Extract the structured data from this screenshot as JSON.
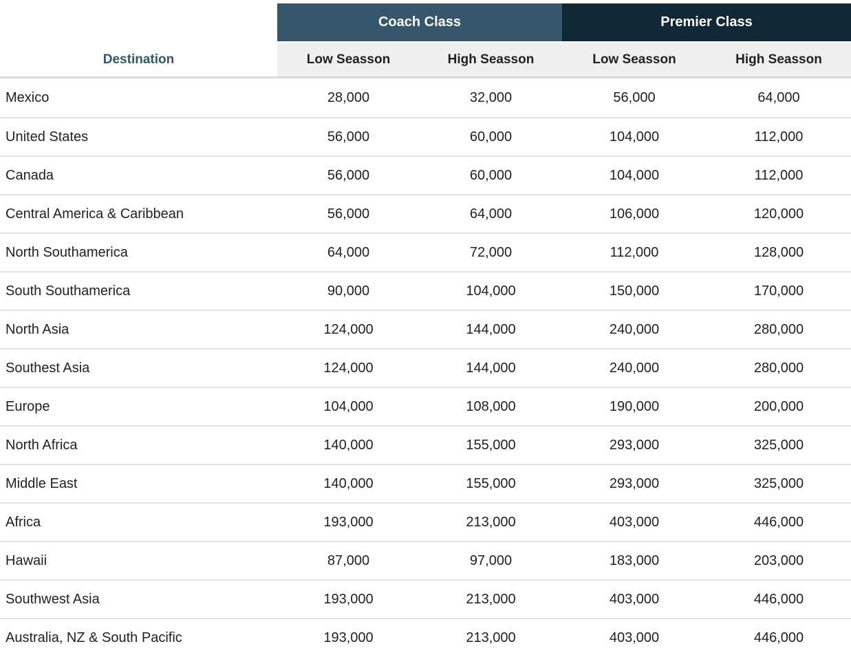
{
  "colors": {
    "coach_header_bg": "#35566B",
    "premier_header_bg": "#112936",
    "season_header_bg": "#efefef",
    "destination_header_text": "#2E5968",
    "body_text": "#212121",
    "row_divider": "#e2e2e2",
    "header_text": "#ffffff"
  },
  "table": {
    "destination_header": "Destination",
    "class_groups": [
      {
        "label": "Coach Class"
      },
      {
        "label": "Premier Class"
      }
    ],
    "season_headers": [
      "Low Seasson",
      "High Seasson",
      "Low Seasson",
      "High Seasson"
    ],
    "rows": [
      {
        "destination": "Mexico",
        "values": [
          "28,000",
          "32,000",
          "56,000",
          "64,000"
        ]
      },
      {
        "destination": "United States",
        "values": [
          "56,000",
          "60,000",
          "104,000",
          "112,000"
        ]
      },
      {
        "destination": "Canada",
        "values": [
          "56,000",
          "60,000",
          "104,000",
          "112,000"
        ]
      },
      {
        "destination": "Central America & Caribbean",
        "values": [
          "56,000",
          "64,000",
          "106,000",
          "120,000"
        ]
      },
      {
        "destination": "North Southamerica",
        "values": [
          "64,000",
          "72,000",
          "112,000",
          "128,000"
        ]
      },
      {
        "destination": "South Southamerica",
        "values": [
          "90,000",
          "104,000",
          "150,000",
          "170,000"
        ]
      },
      {
        "destination": "North Asia",
        "values": [
          "124,000",
          "144,000",
          "240,000",
          "280,000"
        ]
      },
      {
        "destination": "Southest Asia",
        "values": [
          "124,000",
          "144,000",
          "240,000",
          "280,000"
        ]
      },
      {
        "destination": "Europe",
        "values": [
          "104,000",
          "108,000",
          "190,000",
          "200,000"
        ]
      },
      {
        "destination": "North Africa",
        "values": [
          "140,000",
          "155,000",
          "293,000",
          "325,000"
        ]
      },
      {
        "destination": "Middle East",
        "values": [
          "140,000",
          "155,000",
          "293,000",
          "325,000"
        ]
      },
      {
        "destination": "Africa",
        "values": [
          "193,000",
          "213,000",
          "403,000",
          "446,000"
        ]
      },
      {
        "destination": "Hawaii",
        "values": [
          "87,000",
          "97,000",
          "183,000",
          "203,000"
        ]
      },
      {
        "destination": "Southwest Asia",
        "values": [
          "193,000",
          "213,000",
          "403,000",
          "446,000"
        ]
      },
      {
        "destination": "Australia, NZ & South Pacific",
        "values": [
          "193,000",
          "213,000",
          "403,000",
          "446,000"
        ]
      }
    ]
  }
}
